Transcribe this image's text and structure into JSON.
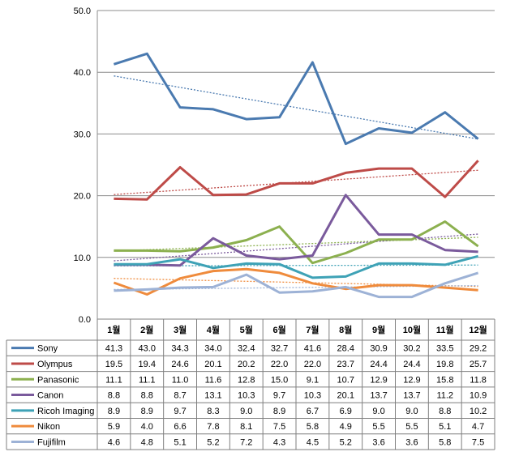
{
  "chart_data": {
    "type": "line",
    "categories": [
      "1월",
      "2월",
      "3월",
      "4월",
      "5월",
      "6월",
      "7월",
      "8월",
      "9월",
      "10월",
      "11월",
      "12월"
    ],
    "ylim": [
      0,
      50
    ],
    "yticks": [
      "0.0",
      "10.0",
      "20.0",
      "30.0",
      "40.0",
      "50.0"
    ],
    "grid": "horizontal",
    "legend": "data-table",
    "trendlines": true,
    "series": [
      {
        "name": "Sony",
        "color": "#4a7ab0",
        "values": [
          41.3,
          43.0,
          34.3,
          34.0,
          32.4,
          32.7,
          41.6,
          28.4,
          30.9,
          30.2,
          33.5,
          29.2
        ]
      },
      {
        "name": "Olympus",
        "color": "#be4b48",
        "values": [
          19.5,
          19.4,
          24.6,
          20.1,
          20.2,
          22.0,
          22.0,
          23.7,
          24.4,
          24.4,
          19.8,
          25.7
        ]
      },
      {
        "name": "Panasonic",
        "color": "#8cb04f",
        "values": [
          11.1,
          11.1,
          11.0,
          11.6,
          12.8,
          15.0,
          9.1,
          10.7,
          12.9,
          12.9,
          15.8,
          11.8
        ]
      },
      {
        "name": "Canon",
        "color": "#7a5a9c",
        "values": [
          8.8,
          8.8,
          8.7,
          13.1,
          10.3,
          9.7,
          10.3,
          20.1,
          13.7,
          13.7,
          11.2,
          10.9
        ]
      },
      {
        "name": "Ricoh Imaging",
        "color": "#3ea2b6",
        "values": [
          8.9,
          8.9,
          9.7,
          8.3,
          9.0,
          8.9,
          6.7,
          6.9,
          9.0,
          9.0,
          8.8,
          10.2
        ]
      },
      {
        "name": "Nikon",
        "color": "#ef8b3c",
        "values": [
          5.9,
          4.0,
          6.6,
          7.8,
          8.1,
          7.5,
          5.8,
          4.9,
          5.5,
          5.5,
          5.1,
          4.7
        ]
      },
      {
        "name": "Fujifilm",
        "color": "#9db2d6",
        "values": [
          4.6,
          4.8,
          5.1,
          5.2,
          7.2,
          4.3,
          4.5,
          5.2,
          3.6,
          3.6,
          5.8,
          7.5
        ]
      }
    ]
  }
}
